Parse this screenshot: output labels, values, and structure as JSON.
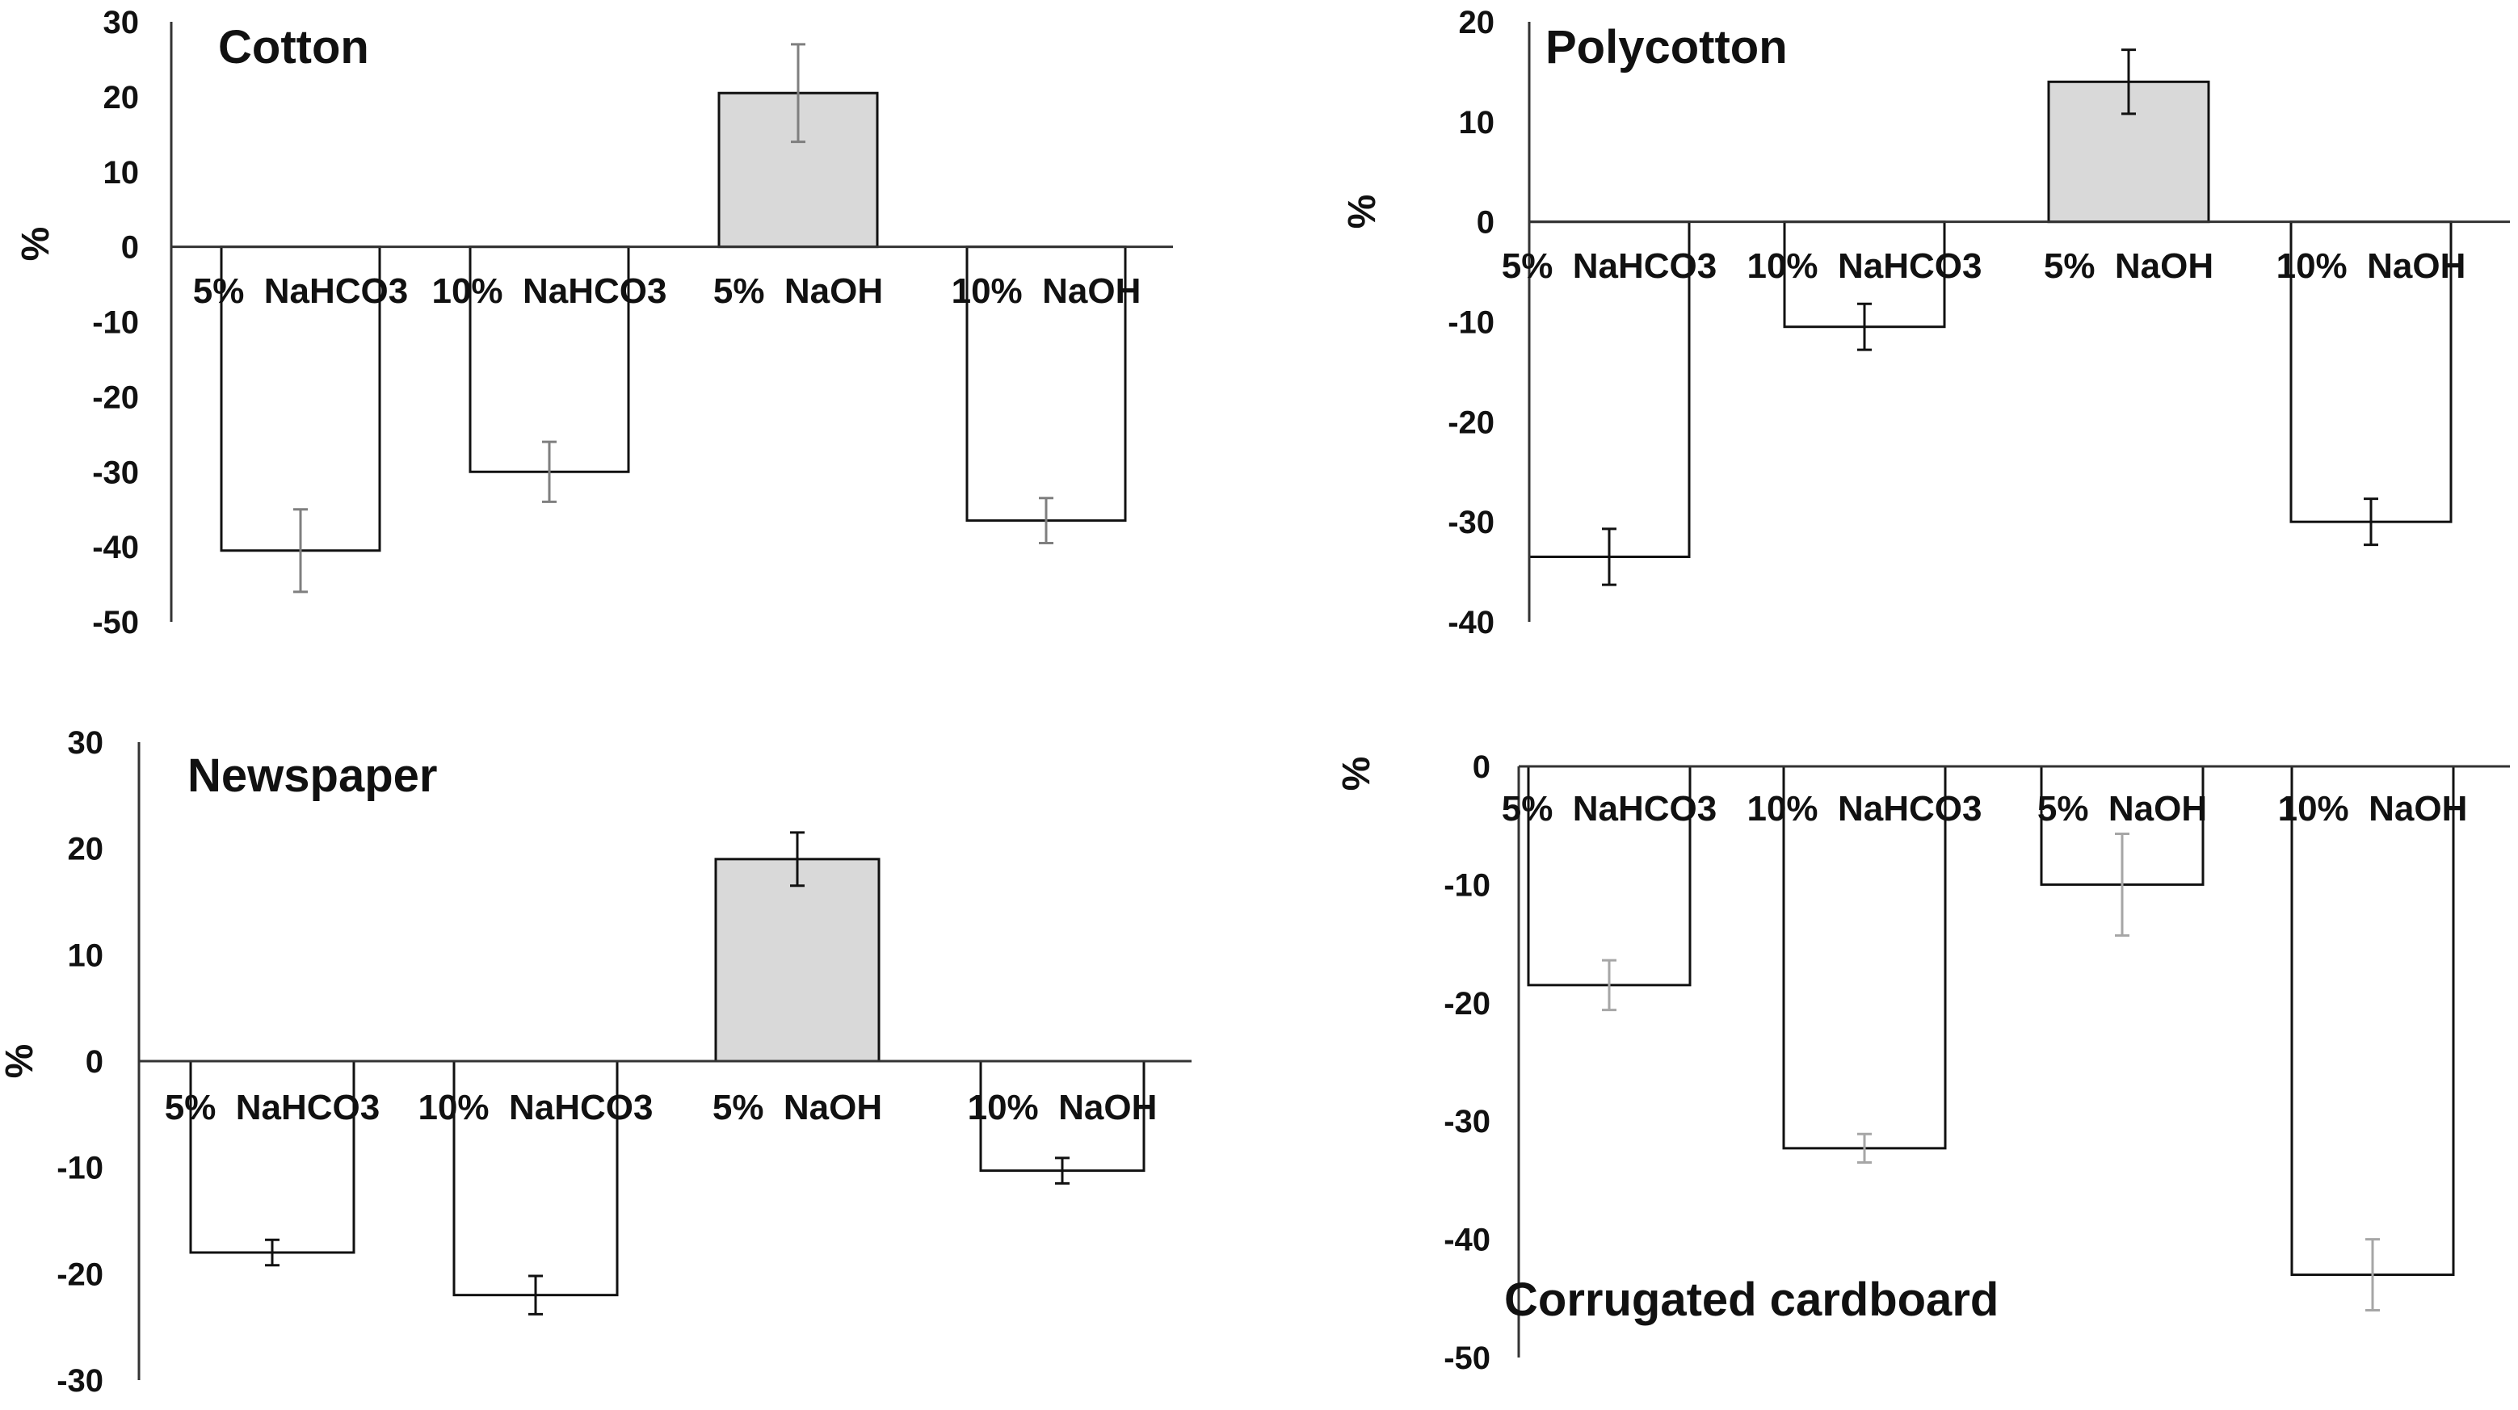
{
  "colors": {
    "positive_fill": "#d9d9d9",
    "negative_fill": "#ffffff",
    "bar_stroke": "#111111",
    "axis": "#333333",
    "error_dark": "#111111",
    "error_gray": "#7f7f7f",
    "error_light": "#a6a6a6"
  },
  "chart_data": [
    {
      "type": "bar",
      "title": "Cotton",
      "ylabel": "%",
      "xlabel": "",
      "ylim": [
        -50,
        30
      ],
      "yticks": [
        30,
        20,
        10,
        0,
        -10,
        -20,
        -30,
        -40,
        -50
      ],
      "categories": [
        "5%  NaHCO3",
        "10%  NaHCO3",
        "5%  NaOH",
        "10%  NaOH"
      ],
      "values": [
        -40.5,
        -30,
        20.5,
        -36.5
      ],
      "errors": [
        5.5,
        4,
        6.5,
        3
      ],
      "error_color": "error_gray",
      "title_position": "top-left",
      "grid": false
    },
    {
      "type": "bar",
      "title": "Polycotton",
      "ylabel": "%",
      "xlabel": "",
      "ylim": [
        -40,
        20
      ],
      "yticks": [
        20,
        10,
        0,
        -10,
        -20,
        -30,
        -40
      ],
      "categories": [
        "5%  NaHCO3",
        "10%  NaHCO3",
        "5%  NaOH",
        "10%  NaOH"
      ],
      "values": [
        -33.5,
        -10.5,
        14,
        -30
      ],
      "errors": [
        2.8,
        2.3,
        3.2,
        2.3
      ],
      "error_color": "error_dark",
      "title_position": "top-left",
      "grid": false
    },
    {
      "type": "bar",
      "title": "Newspaper",
      "ylabel": "%",
      "xlabel": "",
      "ylim": [
        -30,
        30
      ],
      "yticks": [
        30,
        20,
        10,
        0,
        -10,
        -20,
        -30
      ],
      "categories": [
        "5%  NaHCO3",
        "10%  NaHCO3",
        "5%  NaOH",
        "10%  NaOH"
      ],
      "values": [
        -18,
        -22,
        19,
        -10.3
      ],
      "errors": [
        1.2,
        1.8,
        2.5,
        1.2
      ],
      "error_color": "error_dark",
      "title_position": "top-left",
      "grid": false
    },
    {
      "type": "bar",
      "title": "Corrugated cardboard",
      "ylabel": "%",
      "xlabel": "",
      "ylim": [
        -50,
        0
      ],
      "yticks": [
        0,
        -10,
        -20,
        -30,
        -40,
        -50
      ],
      "categories": [
        "5%  NaHCO3",
        "10%  NaHCO3",
        "5%  NaOH",
        "10%  NaOH"
      ],
      "values": [
        -18.5,
        -32.3,
        -10,
        -43
      ],
      "errors": [
        2.1,
        1.2,
        4.3,
        3
      ],
      "error_color": "error_light",
      "title_position": "bottom-left",
      "grid": false
    }
  ]
}
